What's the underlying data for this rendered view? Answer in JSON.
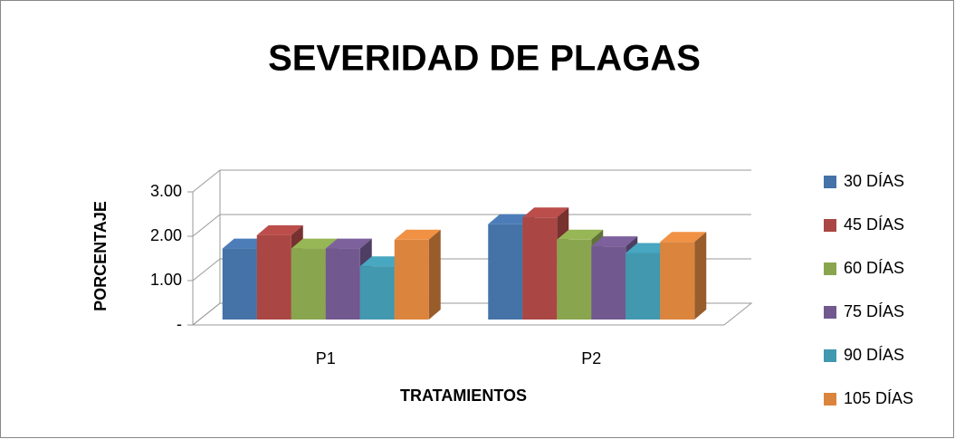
{
  "chart_data": {
    "type": "bar3d",
    "title": "SEVERIDAD DE PLAGAS",
    "x_label": "TRATAMIENTOS",
    "y_label": "PORCENTAJE",
    "categories": [
      "P1",
      "P2"
    ],
    "series": [
      {
        "name": "30 DÍAS",
        "color": "#4572a7",
        "values": [
          1.6,
          2.15
        ]
      },
      {
        "name": "45 DÍAS",
        "color": "#aa4643",
        "values": [
          1.9,
          2.3
        ]
      },
      {
        "name": "60 DÍAS",
        "color": "#89a54e",
        "values": [
          1.6,
          1.8
        ]
      },
      {
        "name": "75 DÍAS",
        "color": "#71588f",
        "values": [
          1.6,
          1.65
        ]
      },
      {
        "name": "90 DÍAS",
        "color": "#4198af",
        "values": [
          1.2,
          1.5
        ]
      },
      {
        "name": "105 DÍAS",
        "color": "#db843d",
        "values": [
          1.8,
          1.75
        ]
      }
    ],
    "ylim": [
      0,
      3
    ],
    "yticks": [
      {
        "value": 0,
        "label": "-"
      },
      {
        "value": 1,
        "label": "1.00"
      },
      {
        "value": 2,
        "label": "2.00"
      },
      {
        "value": 3,
        "label": "3.00"
      }
    ],
    "grid": true,
    "legend": "right"
  }
}
